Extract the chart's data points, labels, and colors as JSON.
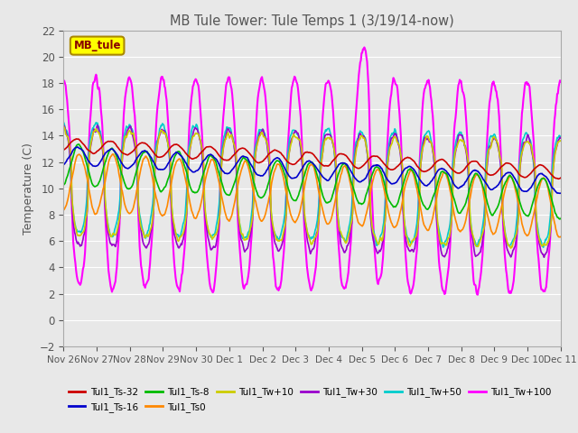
{
  "title": "MB Tule Tower: Tule Temps 1 (3/19/14-now)",
  "ylabel": "Temperature (C)",
  "ylim": [
    -2,
    22
  ],
  "yticks": [
    -2,
    0,
    2,
    4,
    6,
    8,
    10,
    12,
    14,
    16,
    18,
    20,
    22
  ],
  "x_labels": [
    "Nov 26",
    "Nov 27",
    "Nov 28",
    "Nov 29",
    "Nov 30",
    "Dec 1",
    "Dec 2",
    "Dec 3",
    "Dec 4",
    "Dec 5",
    "Dec 6",
    "Dec 7",
    "Dec 8",
    "Dec 9",
    "Dec 10",
    "Dec 11"
  ],
  "legend_label": "MB_tule",
  "series": [
    {
      "name": "Tul1_Ts-32",
      "color": "#cc0000",
      "linewidth": 1.2
    },
    {
      "name": "Tul1_Ts-16",
      "color": "#0000cc",
      "linewidth": 1.2
    },
    {
      "name": "Tul1_Ts-8",
      "color": "#00bb00",
      "linewidth": 1.2
    },
    {
      "name": "Tul1_Ts0",
      "color": "#ff8800",
      "linewidth": 1.2
    },
    {
      "name": "Tul1_Tw+10",
      "color": "#cccc00",
      "linewidth": 1.2
    },
    {
      "name": "Tul1_Tw+30",
      "color": "#9900cc",
      "linewidth": 1.2
    },
    {
      "name": "Tul1_Tw+50",
      "color": "#00cccc",
      "linewidth": 1.2
    },
    {
      "name": "Tul1_Tw+100",
      "color": "#ff00ff",
      "linewidth": 1.5
    }
  ],
  "bg_color": "#e8e8e8",
  "grid_color": "#ffffff",
  "font_color": "#555555",
  "fig_facecolor": "#e8e8e8"
}
